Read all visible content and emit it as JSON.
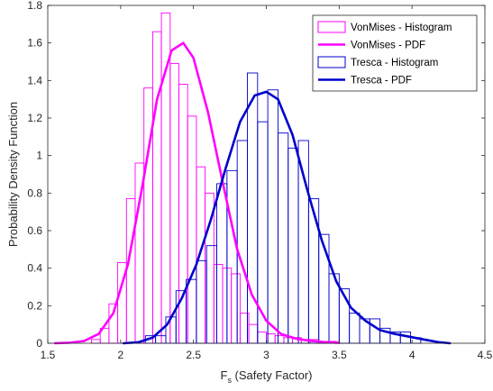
{
  "chart_data": {
    "type": "bar",
    "xlabel_main": "F",
    "xlabel_sub": "s",
    "xlabel_rest": " (Safety Factor)",
    "ylabel": "Probability Density Function",
    "xlim": [
      1.5,
      4.5
    ],
    "ylim": [
      0,
      1.8
    ],
    "xticks": [
      1.5,
      2,
      2.5,
      3,
      3.5,
      4,
      4.5
    ],
    "xtick_labels": [
      "1.5",
      "2",
      "2.5",
      "3",
      "3.5",
      "4",
      "4.5"
    ],
    "yticks": [
      0,
      0.2,
      0.4,
      0.6,
      0.8,
      1,
      1.2,
      1.4,
      1.6,
      1.8
    ],
    "ytick_labels": [
      "0",
      "0.2",
      "0.4",
      "0.6",
      "0.8",
      "1",
      "1.2",
      "1.4",
      "1.6",
      "1.8"
    ],
    "grid": false,
    "legend_position": "top-right",
    "colors": {
      "vonmises": "#ff00ff",
      "tresca": "#0000cc"
    },
    "series": [
      {
        "name": "VonMises - Histogram",
        "kind": "histogram",
        "bin_width": 0.06,
        "bins": [
          {
            "x": 1.8,
            "y": 0.02
          },
          {
            "x": 1.86,
            "y": 0.08
          },
          {
            "x": 1.92,
            "y": 0.21
          },
          {
            "x": 1.98,
            "y": 0.43
          },
          {
            "x": 2.04,
            "y": 0.77
          },
          {
            "x": 2.1,
            "y": 0.96
          },
          {
            "x": 2.16,
            "y": 1.36
          },
          {
            "x": 2.22,
            "y": 1.66
          },
          {
            "x": 2.28,
            "y": 1.76
          },
          {
            "x": 2.34,
            "y": 1.49
          },
          {
            "x": 2.4,
            "y": 1.38
          },
          {
            "x": 2.46,
            "y": 1.21
          },
          {
            "x": 2.52,
            "y": 0.94
          },
          {
            "x": 2.58,
            "y": 0.8
          },
          {
            "x": 2.64,
            "y": 0.42
          },
          {
            "x": 2.7,
            "y": 0.4
          },
          {
            "x": 2.76,
            "y": 0.37
          },
          {
            "x": 2.82,
            "y": 0.16
          },
          {
            "x": 2.88,
            "y": 0.1
          },
          {
            "x": 2.94,
            "y": 0.06
          },
          {
            "x": 3.0,
            "y": 0.05
          },
          {
            "x": 3.06,
            "y": 0.04
          },
          {
            "x": 3.12,
            "y": 0.03
          },
          {
            "x": 3.18,
            "y": 0.03
          },
          {
            "x": 3.24,
            "y": 0.02
          },
          {
            "x": 3.3,
            "y": 0.02
          },
          {
            "x": 3.36,
            "y": 0.01
          },
          {
            "x": 3.42,
            "y": 0.01
          }
        ]
      },
      {
        "name": "VonMises - PDF",
        "kind": "line",
        "points": [
          [
            1.55,
            0.0
          ],
          [
            1.65,
            0.003
          ],
          [
            1.75,
            0.012
          ],
          [
            1.85,
            0.05
          ],
          [
            1.95,
            0.16
          ],
          [
            2.05,
            0.42
          ],
          [
            2.15,
            0.84
          ],
          [
            2.25,
            1.3
          ],
          [
            2.35,
            1.56
          ],
          [
            2.43,
            1.6
          ],
          [
            2.5,
            1.52
          ],
          [
            2.6,
            1.23
          ],
          [
            2.7,
            0.86
          ],
          [
            2.8,
            0.5
          ],
          [
            2.9,
            0.26
          ],
          [
            3.0,
            0.12
          ],
          [
            3.1,
            0.05
          ],
          [
            3.2,
            0.025
          ],
          [
            3.3,
            0.013
          ],
          [
            3.4,
            0.006
          ],
          [
            3.5,
            0.002
          ]
        ]
      },
      {
        "name": "Tresca - Histogram",
        "kind": "histogram",
        "bin_width": 0.07,
        "bins": [
          {
            "x": 2.17,
            "y": 0.04
          },
          {
            "x": 2.24,
            "y": 0.04
          },
          {
            "x": 2.31,
            "y": 0.14
          },
          {
            "x": 2.38,
            "y": 0.28
          },
          {
            "x": 2.45,
            "y": 0.34
          },
          {
            "x": 2.52,
            "y": 0.44
          },
          {
            "x": 2.59,
            "y": 0.52
          },
          {
            "x": 2.66,
            "y": 0.85
          },
          {
            "x": 2.73,
            "y": 0.92
          },
          {
            "x": 2.8,
            "y": 1.08
          },
          {
            "x": 2.87,
            "y": 1.44
          },
          {
            "x": 2.94,
            "y": 1.18
          },
          {
            "x": 3.01,
            "y": 1.35
          },
          {
            "x": 3.08,
            "y": 1.12
          },
          {
            "x": 3.15,
            "y": 1.04
          },
          {
            "x": 3.22,
            "y": 1.08
          },
          {
            "x": 3.29,
            "y": 0.77
          },
          {
            "x": 3.36,
            "y": 0.58
          },
          {
            "x": 3.43,
            "y": 0.37
          },
          {
            "x": 3.5,
            "y": 0.29
          },
          {
            "x": 3.57,
            "y": 0.16
          },
          {
            "x": 3.64,
            "y": 0.13
          },
          {
            "x": 3.71,
            "y": 0.13
          },
          {
            "x": 3.78,
            "y": 0.08
          },
          {
            "x": 3.85,
            "y": 0.06
          },
          {
            "x": 3.92,
            "y": 0.06
          },
          {
            "x": 3.99,
            "y": 0.03
          }
        ]
      },
      {
        "name": "Tresca - PDF",
        "kind": "line",
        "points": [
          [
            2.02,
            0.0
          ],
          [
            2.12,
            0.005
          ],
          [
            2.22,
            0.03
          ],
          [
            2.32,
            0.1
          ],
          [
            2.42,
            0.24
          ],
          [
            2.52,
            0.42
          ],
          [
            2.62,
            0.66
          ],
          [
            2.72,
            0.93
          ],
          [
            2.82,
            1.18
          ],
          [
            2.92,
            1.32
          ],
          [
            3.0,
            1.34
          ],
          [
            3.08,
            1.3
          ],
          [
            3.18,
            1.11
          ],
          [
            3.28,
            0.82
          ],
          [
            3.38,
            0.55
          ],
          [
            3.48,
            0.33
          ],
          [
            3.58,
            0.19
          ],
          [
            3.68,
            0.12
          ],
          [
            3.78,
            0.07
          ],
          [
            3.88,
            0.05
          ],
          [
            3.98,
            0.035
          ],
          [
            4.08,
            0.02
          ],
          [
            4.18,
            0.006
          ],
          [
            4.26,
            0.0
          ]
        ]
      }
    ]
  }
}
